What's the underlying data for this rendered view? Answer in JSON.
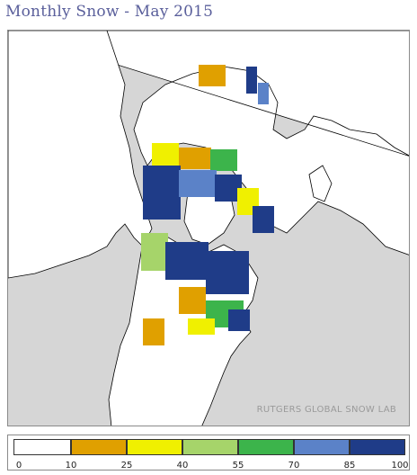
{
  "title": "Monthly Snow - May 2015",
  "map": {
    "credit": "RUTGERS GLOBAL SNOW LAB",
    "colors": {
      "ocean": "#d6d6d6",
      "land": "#ffffff",
      "outline": "#000000"
    }
  },
  "legend": {
    "classes": [
      {
        "color": "#ffffff"
      },
      {
        "color": "#e0a000"
      },
      {
        "color": "#f0f000"
      },
      {
        "color": "#a6d46a"
      },
      {
        "color": "#3cb44b"
      },
      {
        "color": "#5b82c8"
      },
      {
        "color": "#1f3c88"
      }
    ],
    "ticks": [
      "0",
      "10",
      "25",
      "40",
      "55",
      "70",
      "85",
      "100"
    ]
  }
}
